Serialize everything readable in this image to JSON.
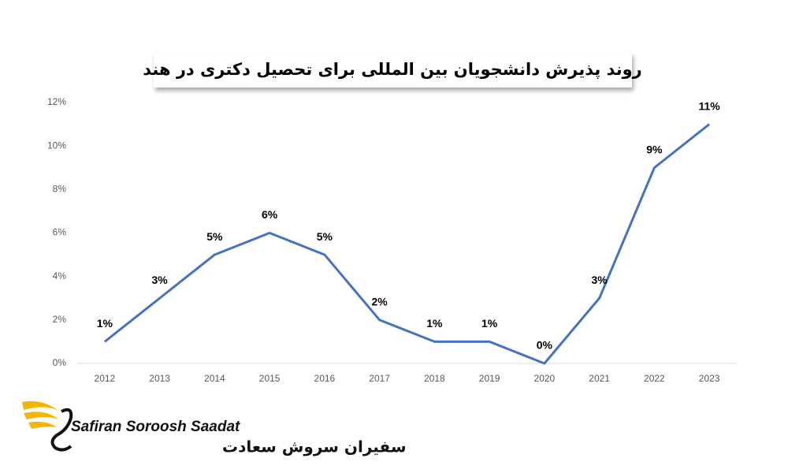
{
  "chart_data": {
    "type": "line",
    "title": "روند پذیرش دانشجویان بین المللی برای تحصیل دکتری در هند",
    "categories": [
      "2012",
      "2013",
      "2014",
      "2015",
      "2016",
      "2017",
      "2018",
      "2019",
      "2020",
      "2021",
      "2022",
      "2023"
    ],
    "values": [
      1,
      3,
      5,
      6,
      5,
      2,
      1,
      1,
      0,
      3,
      9,
      11
    ],
    "value_labels": [
      "1%",
      "3%",
      "5%",
      "6%",
      "5%",
      "2%",
      "1%",
      "1%",
      "0%",
      "3%",
      "9%",
      "11%"
    ],
    "color": "#4472c4",
    "ylim": [
      0,
      12
    ],
    "yticks": [
      {
        "value": 0,
        "label": "0%"
      },
      {
        "value": 2,
        "label": "2%"
      },
      {
        "value": 4,
        "label": "4%"
      },
      {
        "value": 6,
        "label": "6%"
      },
      {
        "value": 8,
        "label": "8%"
      },
      {
        "value": 10,
        "label": "10%"
      },
      {
        "value": 12,
        "label": "12%"
      }
    ],
    "grid": false
  },
  "logo": {
    "latin": "Safiran Soroosh Saadat",
    "persian": "سفیران سروش سعادت"
  }
}
